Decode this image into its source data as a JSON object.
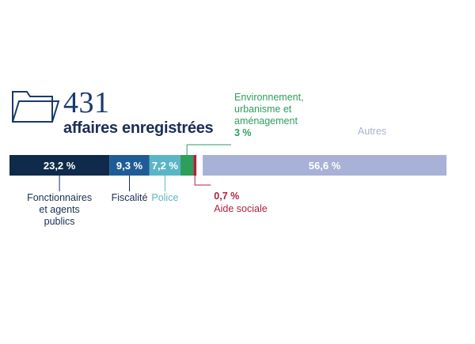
{
  "header": {
    "number": "431",
    "subtitle": "affaires enregistrées"
  },
  "icons": {
    "folder": "folder-icon"
  },
  "chart_data": {
    "type": "bar",
    "orientation": "horizontal-stacked",
    "total_label": "431 affaires enregistrées",
    "segments": [
      {
        "category": [
          "Fonctionnaires",
          "et agents",
          "publics"
        ],
        "value": 23.2,
        "value_label": "23,2 %",
        "color": "#0f2a4a",
        "label_color": "#1b2f55",
        "label_position": "below",
        "value_inside": true
      },
      {
        "category": [
          "Fiscalité"
        ],
        "value": 9.3,
        "value_label": "9,3 %",
        "color": "#1f5c96",
        "label_color": "#1b2f55",
        "label_position": "below",
        "value_inside": true
      },
      {
        "category": [
          "Police"
        ],
        "value": 7.2,
        "value_label": "7,2 %",
        "color": "#5ab6c6",
        "label_color": "#5ab6c6",
        "label_position": "below",
        "value_inside": true
      },
      {
        "category": [
          "Environnement,",
          "urbanisme et",
          "aménagement"
        ],
        "value": 3,
        "value_label": "3 %",
        "color": "#2e9e5c",
        "label_color": "#2e9e5c",
        "label_position": "above",
        "value_inside": false
      },
      {
        "category": [
          "Aide sociale"
        ],
        "value": 0.7,
        "value_label": "0,7 %",
        "color": "#b0213f",
        "label_color": "#b0213f",
        "label_position": "below",
        "value_inside": false
      },
      {
        "category": [
          "Autres"
        ],
        "value": 56.6,
        "value_label": "56,6 %",
        "color": "#a8b1d6",
        "label_color": "#a8b1d6",
        "label_position": "above",
        "value_inside": true
      }
    ]
  }
}
